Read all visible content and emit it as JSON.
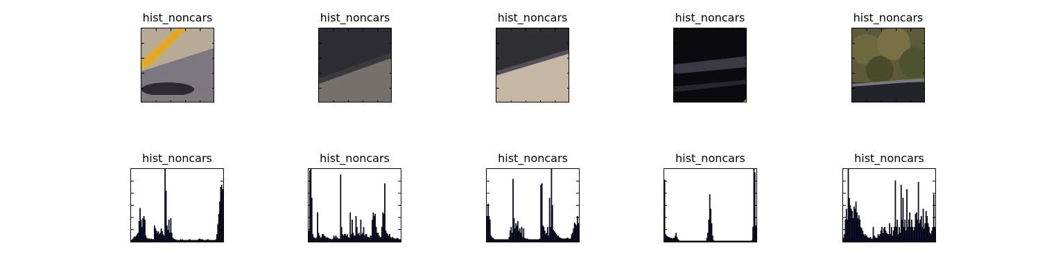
{
  "figure": {
    "background": "#ffffff",
    "layout": {
      "rows": 2,
      "cols": 5
    }
  },
  "image_panels": [
    {
      "title": "hist_noncars",
      "image_desc": "gray asphalt road with a diagonal yellow lane line at upper left and a dark shadow near the bottom"
    },
    {
      "title": "hist_noncars",
      "image_desc": "dark gray concrete wall above a lighter diagonal road surface edge"
    },
    {
      "title": "hist_noncars",
      "image_desc": "dark gray barrier at the top with a bright beige road surface below in a diagonal split"
    },
    {
      "title": "hist_noncars",
      "image_desc": "very dark road scene with shadowed stripes and a small yellow mark at bottom right"
    },
    {
      "title": "hist_noncars",
      "image_desc": "green and brown vegetation above a dark road strip"
    }
  ],
  "chart_data": [
    {
      "type": "bar",
      "title": "hist_noncars",
      "bins": 96,
      "ylim": [
        0,
        1
      ],
      "xticks": false,
      "yticks": "unlabeled",
      "series": [
        {
          "name": "hist",
          "color": "#000000",
          "values": [
            0.02,
            0.03,
            0.05,
            0.07,
            0.06,
            0.08,
            0.1,
            0.12,
            0.28,
            0.46,
            0.3,
            0.2,
            0.32,
            0.35,
            0.3,
            0.08,
            0.05,
            0.04,
            0.04,
            0.04,
            0.03,
            0.04,
            0.03,
            0.03,
            0.22,
            0.18,
            0.15,
            0.12,
            0.14,
            0.1,
            0.12,
            0.18,
            0.14,
            0.1,
            0.08,
            1.0,
            0.7,
            0.22,
            0.16,
            0.3,
            0.12,
            0.32,
            0.12,
            0.05,
            0.04,
            0.03,
            0.03,
            0.02,
            0.02,
            0.02,
            0.02,
            0.03,
            0.02,
            0.03,
            0.02,
            0.02,
            0.02,
            0.02,
            0.02,
            0.02,
            0.03,
            0.03,
            0.02,
            0.02,
            0.02,
            0.02,
            0.02,
            0.02,
            0.02,
            0.02,
            0.03,
            0.04,
            0.03,
            0.03,
            0.03,
            0.02,
            0.02,
            0.02,
            0.02,
            0.03,
            0.03,
            0.02,
            0.02,
            0.02,
            0.02,
            0.02,
            0.02,
            0.02,
            0.03,
            0.1,
            0.24,
            0.38,
            0.55,
            0.75,
            0.78,
            0.72
          ]
        }
      ]
    },
    {
      "type": "bar",
      "title": "hist_noncars",
      "bins": 96,
      "ylim": [
        0,
        1
      ],
      "xticks": false,
      "yticks": "unlabeled",
      "series": [
        {
          "name": "hist",
          "color": "#000000",
          "values": [
            0.15,
            0.98,
            1.0,
            0.6,
            0.1,
            0.06,
            0.05,
            0.04,
            0.06,
            0.4,
            0.12,
            0.08,
            0.05,
            0.06,
            0.1,
            0.1,
            0.08,
            0.07,
            0.05,
            0.06,
            0.05,
            0.04,
            0.04,
            0.03,
            0.03,
            0.04,
            0.08,
            0.05,
            0.08,
            0.06,
            0.05,
            0.04,
            0.04,
            0.92,
            0.2,
            0.1,
            0.08,
            0.1,
            0.1,
            0.08,
            0.1,
            0.06,
            0.05,
            0.4,
            0.1,
            0.3,
            0.12,
            0.08,
            0.08,
            0.35,
            0.2,
            0.1,
            0.12,
            0.08,
            0.3,
            0.1,
            0.12,
            0.2,
            0.08,
            0.1,
            0.1,
            0.06,
            0.06,
            0.05,
            0.08,
            0.08,
            0.3,
            0.4,
            0.35,
            0.38,
            0.2,
            0.12,
            0.12,
            0.08,
            0.06,
            0.06,
            0.2,
            0.4,
            0.38,
            0.8,
            0.15,
            0.12,
            0.1,
            0.08,
            0.1,
            0.06,
            0.05,
            0.06,
            0.05,
            0.04,
            0.04,
            0.04,
            0.05,
            0.04,
            0.03,
            0.03
          ]
        }
      ]
    },
    {
      "type": "bar",
      "title": "hist_noncars",
      "bins": 96,
      "ylim": [
        0,
        1
      ],
      "xticks": false,
      "yticks": "unlabeled",
      "series": [
        {
          "name": "hist",
          "color": "#000000",
          "values": [
            0.35,
            0.52,
            0.35,
            0.3,
            0.08,
            0.06,
            0.05,
            0.04,
            0.03,
            0.03,
            0.03,
            0.03,
            0.03,
            0.03,
            0.03,
            0.03,
            0.03,
            0.03,
            0.03,
            0.03,
            0.03,
            0.03,
            0.03,
            0.06,
            0.15,
            0.2,
            0.12,
            0.86,
            0.32,
            0.18,
            0.25,
            0.22,
            0.28,
            0.15,
            0.18,
            0.12,
            0.2,
            0.06,
            0.18,
            0.05,
            0.04,
            0.04,
            0.04,
            0.03,
            0.03,
            0.03,
            0.03,
            0.03,
            0.03,
            0.03,
            0.03,
            0.03,
            0.03,
            0.03,
            0.03,
            0.04,
            0.78,
            0.8,
            0.22,
            0.2,
            0.15,
            0.1,
            0.12,
            0.2,
            0.08,
            0.6,
            0.2,
            1.0,
            0.5,
            0.16,
            0.14,
            0.12,
            0.1,
            0.08,
            0.08,
            0.06,
            0.05,
            0.05,
            0.04,
            0.04,
            0.04,
            0.04,
            0.04,
            0.05,
            0.05,
            0.04,
            0.04,
            0.04,
            0.1,
            0.12,
            0.18,
            0.26,
            0.24,
            0.22,
            0.35,
            0.25
          ]
        }
      ]
    },
    {
      "type": "bar",
      "title": "hist_noncars",
      "bins": 96,
      "ylim": [
        0,
        1
      ],
      "xticks": false,
      "yticks": "unlabeled",
      "series": [
        {
          "name": "hist",
          "color": "#000000",
          "values": [
            0.85,
            0.1,
            0.08,
            0.07,
            0.06,
            0.06,
            0.05,
            0.05,
            0.04,
            0.05,
            0.05,
            0.08,
            0.12,
            0.06,
            0.03,
            0.02,
            0.01,
            0.01,
            0.01,
            0.01,
            0.01,
            0.01,
            0.01,
            0.01,
            0.01,
            0.01,
            0.01,
            0.01,
            0.01,
            0.01,
            0.01,
            0.01,
            0.01,
            0.01,
            0.01,
            0.01,
            0.01,
            0.01,
            0.01,
            0.01,
            0.01,
            0.01,
            0.01,
            0.01,
            0.05,
            0.12,
            0.3,
            0.65,
            0.45,
            0.25,
            0.08,
            0.02,
            0.01,
            0.01,
            0.01,
            0.01,
            0.01,
            0.01,
            0.01,
            0.01,
            0.01,
            0.01,
            0.01,
            0.01,
            0.01,
            0.01,
            0.01,
            0.01,
            0.01,
            0.01,
            0.01,
            0.01,
            0.01,
            0.01,
            0.01,
            0.01,
            0.01,
            0.01,
            0.01,
            0.01,
            0.01,
            0.01,
            0.01,
            0.01,
            0.01,
            0.01,
            0.01,
            0.01,
            0.01,
            0.01,
            0.01,
            0.02,
            0.2,
            1.0,
            0.95,
            0.22
          ]
        }
      ]
    },
    {
      "type": "bar",
      "title": "hist_noncars",
      "bins": 96,
      "ylim": [
        0,
        1
      ],
      "xticks": false,
      "yticks": "unlabeled",
      "series": [
        {
          "name": "hist",
          "color": "#000000",
          "values": [
            0.05,
            0.1,
            0.3,
            0.45,
            0.3,
            1.0,
            0.6,
            0.5,
            0.45,
            0.42,
            0.32,
            0.48,
            0.45,
            0.55,
            0.4,
            0.32,
            0.36,
            0.3,
            0.2,
            0.18,
            0.15,
            0.1,
            0.08,
            0.1,
            0.08,
            0.06,
            0.05,
            0.05,
            0.06,
            0.04,
            0.04,
            0.2,
            0.08,
            0.06,
            0.05,
            0.05,
            0.1,
            0.08,
            0.1,
            0.15,
            0.2,
            0.12,
            0.18,
            0.2,
            0.15,
            0.12,
            0.1,
            0.1,
            0.25,
            0.1,
            0.2,
            0.08,
            0.15,
            0.2,
            0.84,
            0.2,
            0.3,
            0.1,
            0.2,
            0.12,
            0.78,
            0.3,
            0.6,
            0.2,
            0.3,
            0.15,
            0.72,
            0.2,
            0.3,
            0.4,
            0.2,
            0.3,
            0.2,
            0.15,
            0.2,
            0.38,
            0.4,
            0.3,
            0.82,
            0.25,
            0.3,
            0.35,
            0.2,
            0.45,
            0.18,
            0.25,
            0.42,
            0.35,
            0.25,
            0.2,
            0.12,
            0.1,
            0.15,
            0.2,
            0.65,
            0.2
          ]
        }
      ]
    }
  ]
}
